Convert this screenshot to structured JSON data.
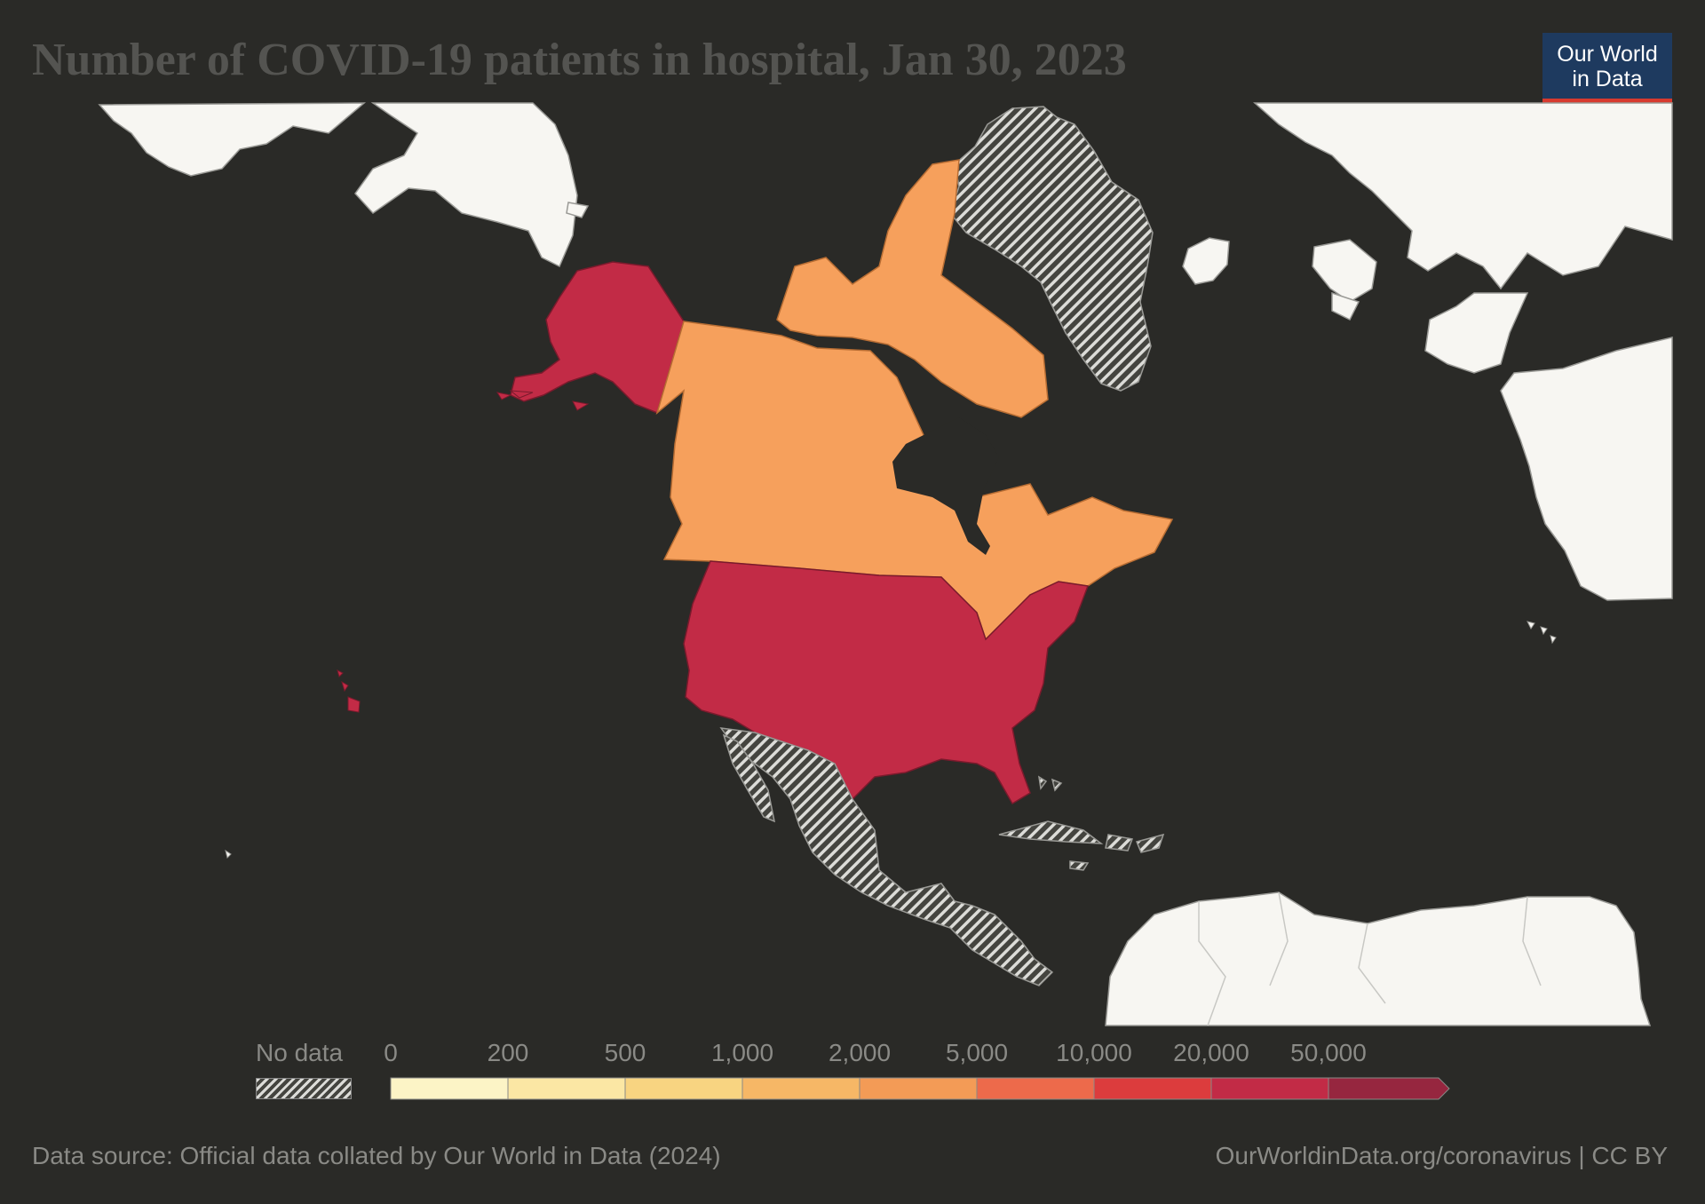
{
  "title": "Number of COVID-19 patients in hospital, Jan 30, 2023",
  "logo": {
    "line1": "Our World",
    "line2": "in Data"
  },
  "map": {
    "region": "North America",
    "countries": [
      {
        "name": "United States",
        "bin": "20,000 - 50,000",
        "color": "#c22b46"
      },
      {
        "name": "Canada",
        "bin": "2,000 - 5,000",
        "color": "#f6a05c"
      },
      {
        "name": "Greenland",
        "bin": "No data",
        "color": "hatched"
      },
      {
        "name": "Mexico",
        "bin": "No data",
        "color": "hatched"
      },
      {
        "name": "Central America",
        "bin": "No data",
        "color": "hatched"
      },
      {
        "name": "Caribbean",
        "bin": "No data",
        "color": "hatched"
      }
    ],
    "colors": {
      "ocean": "#2a2a27",
      "other_land": "#f7f6f2",
      "border": "#9a9a96"
    }
  },
  "legend": {
    "no_data_label": "No data",
    "ticks": [
      "0",
      "200",
      "500",
      "1,000",
      "2,000",
      "5,000",
      "10,000",
      "20,000",
      "50,000"
    ],
    "bins": [
      {
        "color": "#fcf4c6"
      },
      {
        "color": "#fbe7a4"
      },
      {
        "color": "#f8d481"
      },
      {
        "color": "#f6b766"
      },
      {
        "color": "#f39b56"
      },
      {
        "color": "#ed6a4b"
      },
      {
        "color": "#dc3c3d"
      },
      {
        "color": "#c22b46"
      },
      {
        "color": "#96263f"
      }
    ]
  },
  "footer": {
    "source": "Data source: Official data collated by Our World in Data (2024)",
    "link": "OurWorldinData.org/coronavirus | CC BY"
  }
}
